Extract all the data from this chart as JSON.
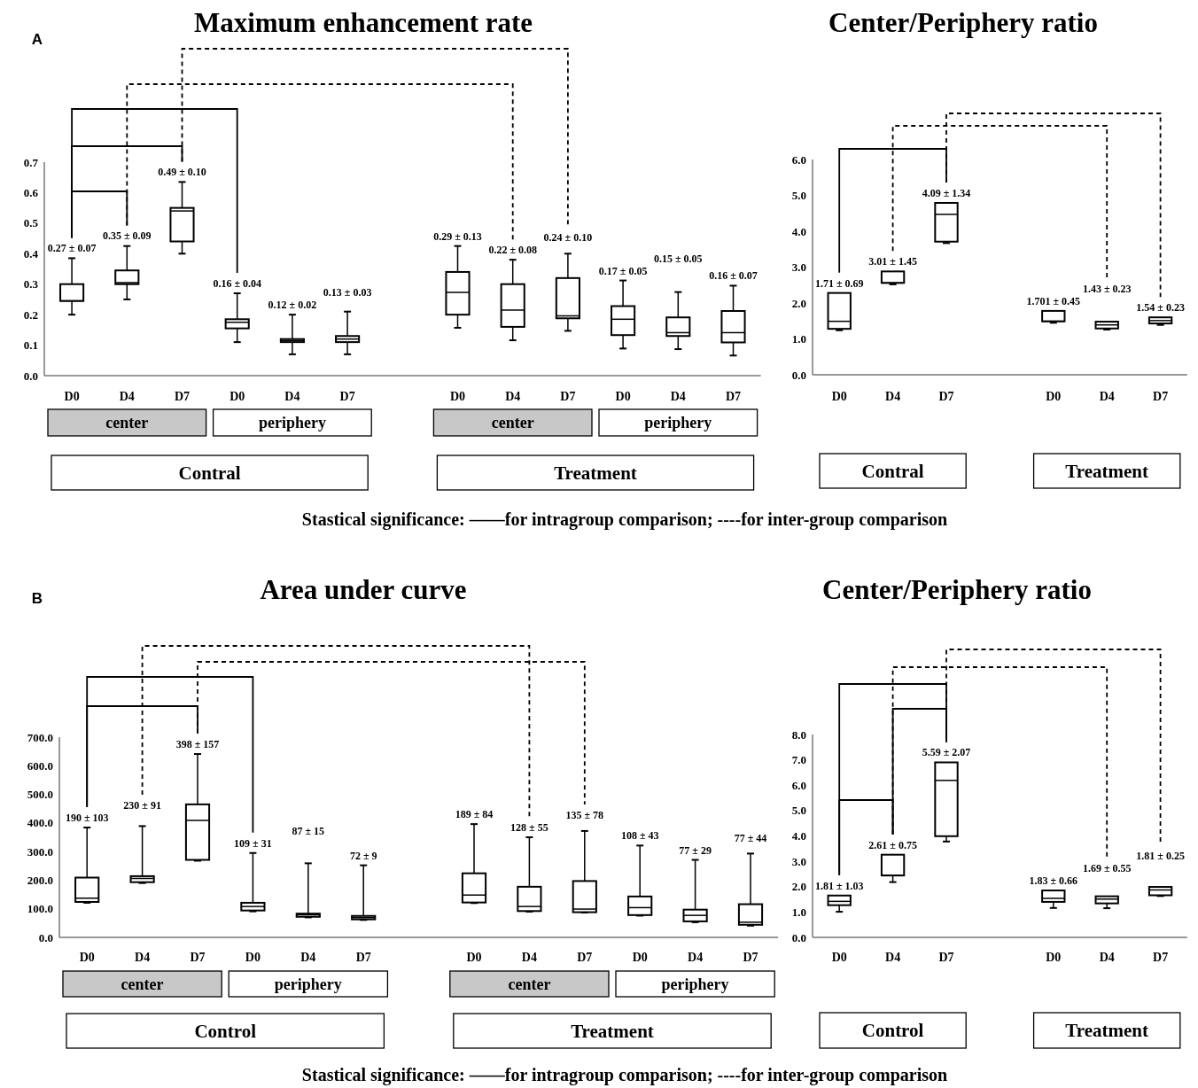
{
  "chart_data": [
    {
      "type": "box",
      "title": "Maximum enhancement rate",
      "categories": [
        "D0",
        "D4",
        "D7",
        "D0",
        "D4",
        "D7",
        null,
        "D0",
        "D4",
        "D7",
        "D0",
        "D4",
        "D7"
      ],
      "boxes": [
        {
          "low": 0.2,
          "q1": 0.245,
          "median": 0.245,
          "q3": 0.3,
          "high": 0.385
        },
        {
          "low": 0.25,
          "q1": 0.3,
          "median": 0.305,
          "q3": 0.345,
          "high": 0.425
        },
        {
          "low": 0.4,
          "q1": 0.44,
          "median": 0.54,
          "q3": 0.55,
          "high": 0.635
        },
        {
          "low": 0.11,
          "q1": 0.155,
          "median": 0.175,
          "q3": 0.185,
          "high": 0.27
        },
        {
          "low": 0.07,
          "q1": 0.11,
          "median": 0.115,
          "q3": 0.12,
          "high": 0.2
        },
        {
          "low": 0.07,
          "q1": 0.11,
          "median": 0.12,
          "q3": 0.13,
          "high": 0.21
        },
        null,
        {
          "low": 0.157,
          "q1": 0.2,
          "median": 0.273,
          "q3": 0.34,
          "high": 0.425
        },
        {
          "low": 0.116,
          "q1": 0.16,
          "median": 0.215,
          "q3": 0.3,
          "high": 0.38
        },
        {
          "low": 0.147,
          "q1": 0.188,
          "median": 0.196,
          "q3": 0.32,
          "high": 0.4
        },
        {
          "low": 0.089,
          "q1": 0.133,
          "median": 0.185,
          "q3": 0.228,
          "high": 0.312
        },
        {
          "low": 0.087,
          "q1": 0.13,
          "median": 0.141,
          "q3": 0.191,
          "high": 0.274
        },
        {
          "low": 0.066,
          "q1": 0.109,
          "median": 0.141,
          "q3": 0.212,
          "high": 0.295
        }
      ],
      "value_labels": [
        "0.27 ± 0.07",
        "0.35 ± 0.09",
        "0.49 ± 0.10",
        "0.16 ± 0.04",
        "0.12 ± 0.02",
        "0.13 ± 0.03",
        null,
        "0.29 ± 0.13",
        "0.22 ± 0.08",
        "0.24 ± 0.10",
        "0.17 ± 0.05",
        "0.15 ± 0.05",
        "0.16 ± 0.07"
      ],
      "ylim": [
        0,
        0.7
      ],
      "yticks": [
        {
          "value": 0,
          "label": "0.0"
        },
        0.1,
        0.2,
        0.3,
        0.4,
        0.5,
        0.6,
        0.7
      ],
      "annotations": [
        "A",
        "center",
        "periphery",
        "center",
        "periphery",
        "Contral",
        "Treatment",
        "Stastical significance: ——for intragroup comparison;    ----for inter-group comparison"
      ]
    },
    {
      "type": "box",
      "title": "Center/Periphery ratio",
      "categories": [
        "D0",
        "D4",
        "D7",
        null,
        "D0",
        "D4",
        "D7"
      ],
      "boxes": [
        {
          "low": 1.24,
          "q1": 1.28,
          "median": 1.49,
          "q3": 2.28,
          "high": 2.28
        },
        {
          "low": 2.52,
          "q1": 2.56,
          "median": 2.56,
          "q3": 2.88,
          "high": 2.88
        },
        {
          "low": 3.67,
          "q1": 3.71,
          "median": 4.47,
          "q3": 4.79,
          "high": 4.79
        },
        null,
        {
          "low": 1.45,
          "q1": 1.49,
          "median": 1.49,
          "q3": 1.78,
          "high": 1.78
        },
        {
          "low": 1.26,
          "q1": 1.29,
          "median": 1.39,
          "q3": 1.48,
          "high": 1.48
        },
        {
          "low": 1.39,
          "q1": 1.43,
          "median": 1.51,
          "q3": 1.6,
          "high": 1.6
        }
      ],
      "value_labels": [
        "1.71 ± 0.69",
        "3.01 ± 1.45",
        "4.09 ± 1.34",
        null,
        "1.701 ± 0.45",
        "1.43 ± 0.23",
        "1.54 ± 0.23"
      ],
      "ylim": [
        0,
        6
      ],
      "yticks": [
        {
          "value": 0,
          "label": "0.0"
        },
        {
          "value": 1,
          "label": "1.0"
        },
        {
          "value": 2,
          "label": "2.0"
        },
        {
          "value": 3,
          "label": "3.0"
        },
        {
          "value": 4,
          "label": "4.0"
        },
        {
          "value": 5,
          "label": "5.0"
        },
        {
          "value": 6,
          "label": "6.0"
        }
      ],
      "annotations": [
        "Contral",
        "Treatment"
      ]
    },
    {
      "type": "box",
      "title": "Area under curve",
      "categories": [
        "D0",
        "D4",
        "D7",
        "D0",
        "D4",
        "D7",
        null,
        "D0",
        "D4",
        "D7",
        "D0",
        "D4",
        "D7"
      ],
      "boxes": [
        {
          "low": 121,
          "q1": 124,
          "median": 137,
          "q3": 209,
          "high": 384
        },
        {
          "low": 190,
          "q1": 193,
          "median": 206,
          "q3": 214,
          "high": 389
        },
        {
          "low": 268,
          "q1": 271,
          "median": 409,
          "q3": 465,
          "high": 641
        },
        {
          "low": 91,
          "q1": 94,
          "median": 108,
          "q3": 121,
          "high": 295
        },
        {
          "low": 70,
          "q1": 72,
          "median": 79,
          "q3": 83,
          "high": 259
        },
        {
          "low": 61,
          "q1": 63,
          "median": 69,
          "q3": 75,
          "high": 252
        },
        null,
        {
          "low": 120,
          "q1": 122,
          "median": 148,
          "q3": 224,
          "high": 396
        },
        {
          "low": 90,
          "q1": 92,
          "median": 108,
          "q3": 177,
          "high": 350
        },
        {
          "low": 87,
          "q1": 88,
          "median": 99,
          "q3": 197,
          "high": 372
        },
        {
          "low": 76,
          "q1": 78,
          "median": 104,
          "q3": 143,
          "high": 321
        },
        {
          "low": 53,
          "q1": 56,
          "median": 77,
          "q3": 97,
          "high": 271
        },
        {
          "low": 41,
          "q1": 44,
          "median": 53,
          "q3": 116,
          "high": 293
        }
      ],
      "value_labels": [
        "190 ± 103",
        "230 ± 91",
        "398 ± 157",
        "109 ± 31",
        "87 ± 15",
        "72 ± 9",
        null,
        "189 ± 84",
        "128 ± 55",
        "135 ± 78",
        "108 ± 43",
        "77 ± 29",
        "77 ± 44"
      ],
      "ylim": [
        0,
        700
      ],
      "yticks": [
        {
          "value": 0,
          "label": "0.0"
        },
        {
          "value": 100,
          "label": "100.0"
        },
        {
          "value": 200,
          "label": "200.0"
        },
        {
          "value": 300,
          "label": "300.0"
        },
        {
          "value": 400,
          "label": "400.0"
        },
        {
          "value": 500,
          "label": "500.0"
        },
        {
          "value": 600,
          "label": "600.0"
        },
        {
          "value": 700,
          "label": "700.0"
        }
      ],
      "annotations": [
        "B",
        "center",
        "periphery",
        "center",
        "periphery",
        "Control",
        "Treatment",
        "Stastical significance: ——for intragroup comparison;    ----for inter-group comparison"
      ]
    },
    {
      "type": "box",
      "title": "Center/Periphery ratio",
      "categories": [
        "D0",
        "D4",
        "D7",
        null,
        "D0",
        "D4",
        "D7"
      ],
      "boxes": [
        {
          "low": 1.01,
          "q1": 1.27,
          "median": 1.42,
          "q3": 1.65,
          "high": 1.65
        },
        {
          "low": 2.18,
          "q1": 2.44,
          "median": 2.44,
          "q3": 3.26,
          "high": 3.26
        },
        {
          "low": 3.78,
          "q1": 3.99,
          "median": 6.19,
          "q3": 6.9,
          "high": 6.9
        },
        null,
        {
          "low": 1.16,
          "q1": 1.4,
          "median": 1.54,
          "q3": 1.85,
          "high": 1.85
        },
        {
          "low": 1.15,
          "q1": 1.34,
          "median": 1.51,
          "q3": 1.62,
          "high": 1.62
        },
        {
          "low": 1.63,
          "q1": 1.66,
          "median": 1.87,
          "q3": 1.99,
          "high": 1.99
        }
      ],
      "value_labels": [
        "1.81 ± 1.03",
        "2.61 ± 0.75",
        "5.59 ± 2.07",
        null,
        "1.83 ± 0.66",
        "1.69 ± 0.55",
        "1.81 ± 0.25"
      ],
      "ylim": [
        0,
        8
      ],
      "yticks": [
        {
          "value": 0,
          "label": "0.0"
        },
        {
          "value": 1,
          "label": "1.0"
        },
        {
          "value": 2,
          "label": "2.0"
        },
        {
          "value": 3,
          "label": "3.0"
        },
        {
          "value": 4,
          "label": "4.0"
        },
        {
          "value": 5,
          "label": "5.0"
        },
        {
          "value": 6,
          "label": "6.0"
        },
        {
          "value": 7,
          "label": "7.0"
        },
        {
          "value": 8,
          "label": "8.0"
        }
      ],
      "annotations": [
        "Control",
        "Treatment"
      ]
    }
  ]
}
